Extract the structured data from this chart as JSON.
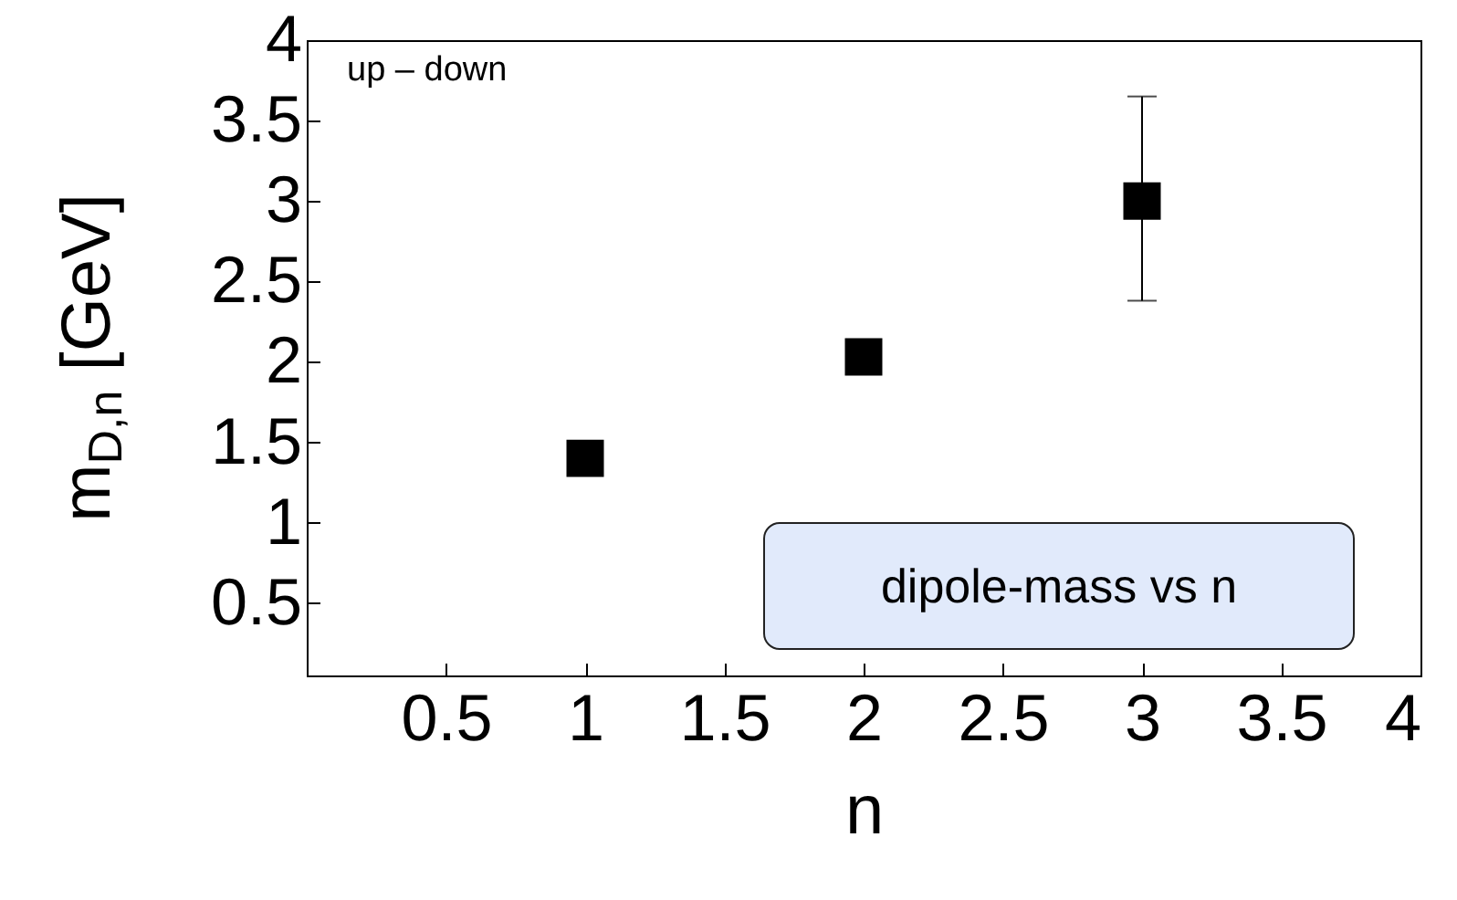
{
  "chart_data": {
    "type": "scatter",
    "xlabel": "n",
    "ylabel": "m$_{D,n}$ [GeV]",
    "x": [
      1,
      2,
      3
    ],
    "series": [
      {
        "color": "#000000",
        "values": [
          1.4,
          2.03,
          3.0
        ],
        "errors": [
          null,
          null,
          [
            2.38,
            3.65
          ]
        ]
      }
    ],
    "marker": "square",
    "xlim": [
      0,
      4
    ],
    "ylim": [
      0.05,
      4
    ],
    "xticks": [
      0.5,
      1,
      1.5,
      2,
      2.5,
      3,
      3.5,
      4
    ],
    "yticks": [
      0.5,
      1,
      1.5,
      2,
      2.5,
      3,
      3.5,
      4
    ],
    "grid": false,
    "annotations": [
      "up – down",
      "dipole-mass vs n"
    ]
  }
}
